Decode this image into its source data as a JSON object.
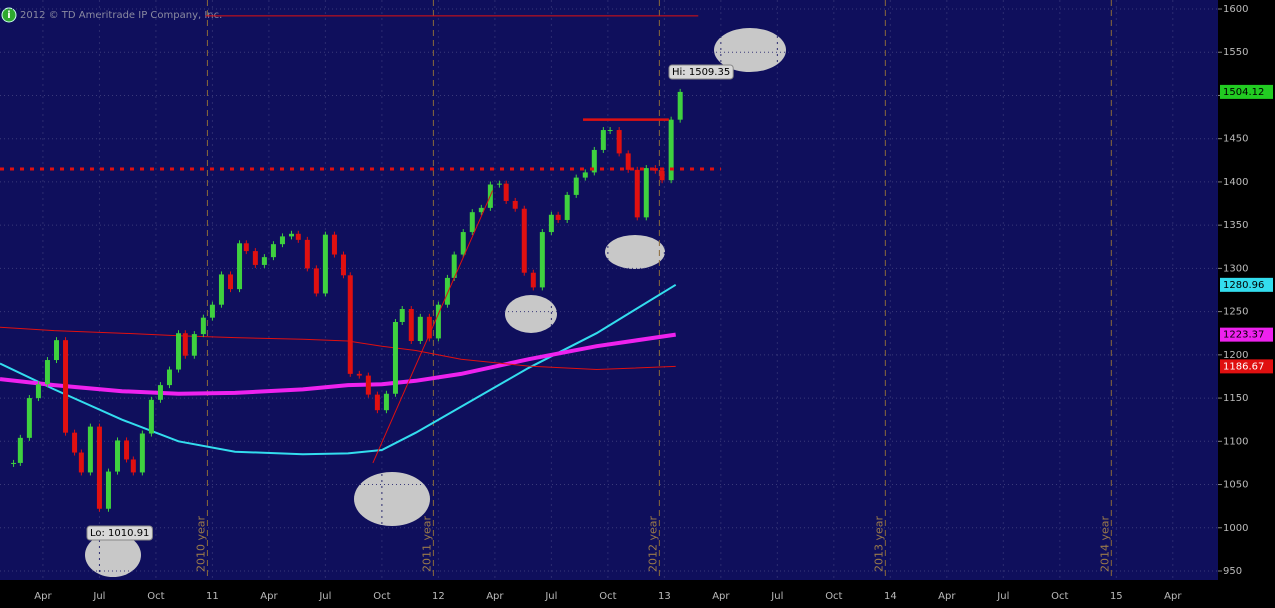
{
  "chart_data": {
    "type": "candlestick",
    "copyright": "2012 © TD Ameritrade IP Company, Inc.",
    "hi_label": "Hi: 1509.35",
    "lo_label": "Lo: 1010.91",
    "xlim": [
      2010.06,
      2015.45
    ],
    "ylim": [
      950,
      1600
    ],
    "yticks": [
      950,
      1000,
      1050,
      1100,
      1150,
      1200,
      1250,
      1300,
      1350,
      1400,
      1450,
      1500,
      1550,
      1600
    ],
    "xticks": [
      {
        "value": 2010.25,
        "label": "Apr"
      },
      {
        "value": 2010.5,
        "label": "Jul"
      },
      {
        "value": 2010.75,
        "label": "Oct"
      },
      {
        "value": 2011,
        "label": "11"
      },
      {
        "value": 2011.25,
        "label": "Apr"
      },
      {
        "value": 2011.5,
        "label": "Jul"
      },
      {
        "value": 2011.75,
        "label": "Oct"
      },
      {
        "value": 2012,
        "label": "12"
      },
      {
        "value": 2012.25,
        "label": "Apr"
      },
      {
        "value": 2012.5,
        "label": "Jul"
      },
      {
        "value": 2012.75,
        "label": "Oct"
      },
      {
        "value": 2013,
        "label": "13"
      },
      {
        "value": 2013.25,
        "label": "Apr"
      },
      {
        "value": 2013.5,
        "label": "Jul"
      },
      {
        "value": 2013.75,
        "label": "Oct"
      },
      {
        "value": 2014,
        "label": "14"
      },
      {
        "value": 2014.25,
        "label": "Apr"
      },
      {
        "value": 2014.5,
        "label": "Jul"
      },
      {
        "value": 2014.75,
        "label": "Oct"
      },
      {
        "value": 2015,
        "label": "15"
      },
      {
        "value": 2015.25,
        "label": "Apr"
      }
    ],
    "year_markers": [
      {
        "value": 2011,
        "label": "2010 year"
      },
      {
        "value": 2012,
        "label": "2011 year"
      },
      {
        "value": 2013,
        "label": "2012 year"
      },
      {
        "value": 2014,
        "label": "2013 year"
      },
      {
        "value": 2015,
        "label": "2014 year"
      }
    ],
    "price": {
      "color_up": "#3fd13f",
      "color_down": "#e01010",
      "label_color": "#22cc22",
      "x": [
        2010.12,
        2010.15,
        2010.19,
        2010.23,
        2010.27,
        2010.31,
        2010.35,
        2010.39,
        2010.42,
        2010.46,
        2010.5,
        2010.54,
        2010.58,
        2010.62,
        2010.65,
        2010.69,
        2010.73,
        2010.77,
        2010.81,
        2010.85,
        2010.88,
        2010.92,
        2010.96,
        2011.0,
        2011.04,
        2011.08,
        2011.12,
        2011.15,
        2011.19,
        2011.23,
        2011.27,
        2011.31,
        2011.35,
        2011.38,
        2011.42,
        2011.46,
        2011.5,
        2011.54,
        2011.58,
        2011.61,
        2011.65,
        2011.69,
        2011.73,
        2011.77,
        2011.81,
        2011.84,
        2011.88,
        2011.92,
        2011.96,
        2012.0,
        2012.04,
        2012.07,
        2012.11,
        2012.15,
        2012.19,
        2012.23,
        2012.27,
        2012.3,
        2012.34,
        2012.38,
        2012.42,
        2012.46,
        2012.5,
        2012.53,
        2012.57,
        2012.61,
        2012.65,
        2012.69,
        2012.73,
        2012.76,
        2012.8,
        2012.84,
        2012.88,
        2012.92,
        2012.96,
        2012.99,
        2013.03,
        2013.07
      ],
      "values": [
        1075,
        1104,
        1150,
        1166,
        1194,
        1217,
        1110,
        1087,
        1064,
        1117,
        1022,
        1065,
        1101,
        1079,
        1064,
        1109,
        1148,
        1165,
        1183,
        1225,
        1199,
        1224,
        1243,
        1258,
        1293,
        1276,
        1329,
        1320,
        1304,
        1313,
        1328,
        1337,
        1340,
        1333,
        1300,
        1271,
        1339,
        1316,
        1292,
        1178,
        1176,
        1154,
        1136,
        1155,
        1238,
        1253,
        1216,
        1244,
        1219,
        1258,
        1289,
        1316,
        1342,
        1365,
        1370,
        1397,
        1398,
        1378,
        1369,
        1295,
        1278,
        1342,
        1362,
        1356,
        1385,
        1405,
        1411,
        1437,
        1460,
        1460,
        1433,
        1414,
        1359,
        1416,
        1413,
        1402,
        1472,
        1504.12
      ]
    },
    "series": [
      {
        "color": "#33ddee",
        "x": [
          2010.06,
          2010.3,
          2010.6,
          2010.85,
          2011.1,
          2011.4,
          2011.6,
          2011.75,
          2011.9,
          2012.1,
          2012.4,
          2012.7,
          2013.05
        ],
        "values": [
          1190,
          1160,
          1125,
          1100,
          1088,
          1085,
          1086,
          1090,
          1110,
          1140,
          1185,
          1225,
          1280.96
        ]
      },
      {
        "color": "#ee22ee",
        "x": [
          2010.06,
          2010.3,
          2010.6,
          2010.85,
          2011.1,
          2011.4,
          2011.6,
          2011.75,
          2011.9,
          2012.1,
          2012.4,
          2012.7,
          2013.05
        ],
        "values": [
          1172,
          1165,
          1158,
          1155,
          1156,
          1160,
          1165,
          1166,
          1170,
          1178,
          1195,
          1210,
          1223.37
        ]
      },
      {
        "color": "#e01010",
        "x": [
          2010.06,
          2010.3,
          2010.6,
          2010.85,
          2011.1,
          2011.4,
          2011.6,
          2011.75,
          2011.9,
          2012.1,
          2012.4,
          2012.7,
          2013.05
        ],
        "values": [
          1232,
          1228,
          1225,
          1222,
          1220,
          1218,
          1216,
          1210,
          1205,
          1195,
          1187,
          1183,
          1186.67
        ]
      }
    ],
    "levels": [
      {
        "value": 1415,
        "x": [
          2010.06,
          2013.25
        ],
        "style": "dotted"
      },
      {
        "value": 1472,
        "x": [
          2012.64,
          2013.02
        ],
        "style": "solid"
      },
      {
        "value": 1592,
        "x": [
          2010.97,
          2013.15
        ],
        "style": "thin"
      }
    ],
    "trendline": {
      "x": [
        2011.71,
        2012.24
      ],
      "values": [
        1075,
        1390
      ]
    }
  }
}
